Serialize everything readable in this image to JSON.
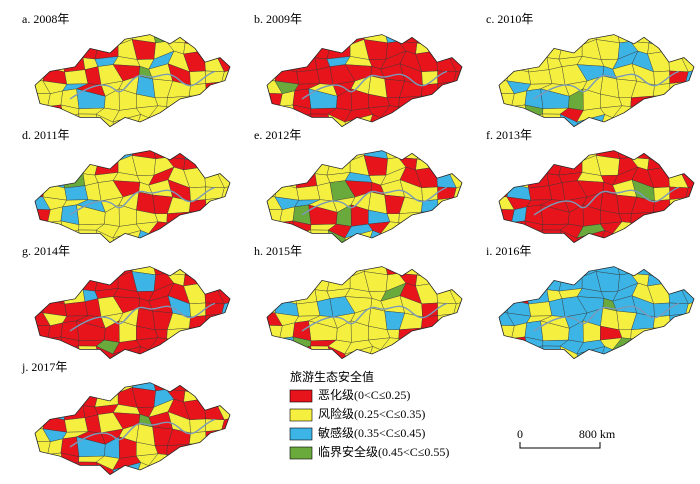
{
  "panels": [
    {
      "label": "a. 2008年"
    },
    {
      "label": "b. 2009年"
    },
    {
      "label": "c. 2010年"
    },
    {
      "label": "d. 2011年"
    },
    {
      "label": "e. 2012年"
    },
    {
      "label": "f. 2013年"
    },
    {
      "label": "g. 2014年"
    },
    {
      "label": "h. 2015年"
    },
    {
      "label": "i. 2016年"
    },
    {
      "label": "j. 2017年"
    }
  ],
  "legend": {
    "title": "旅游生态安全值",
    "items": [
      {
        "label": "恶化级(0<C≤0.25)",
        "color": "#e8141c"
      },
      {
        "label": "风险级(0.25<C≤0.35)",
        "color": "#f5f040"
      },
      {
        "label": "敏感级(0.35<C≤0.45)",
        "color": "#3cb4e6"
      },
      {
        "label": "临界安全级(0.45<C≤0.55)",
        "color": "#6aaa3c"
      }
    ]
  },
  "scale_bar": {
    "labels": [
      "0",
      "800 km"
    ]
  }
}
